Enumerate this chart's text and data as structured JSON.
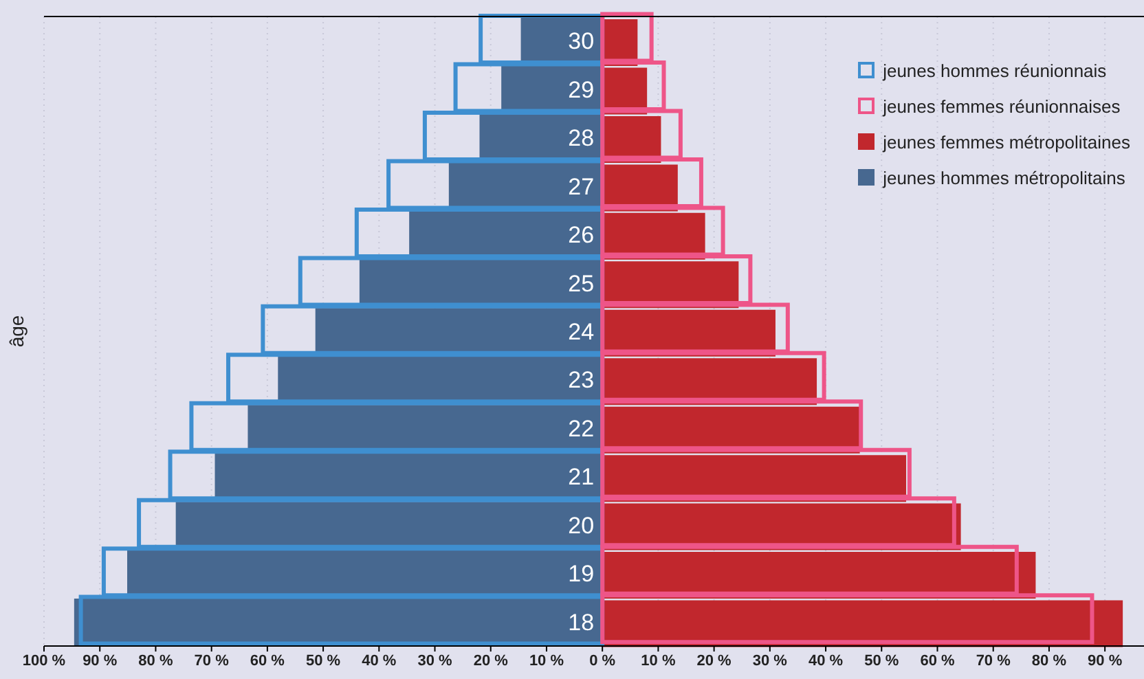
{
  "chart_data": {
    "type": "bar",
    "orientation": "horizontal",
    "ylabel": "âge",
    "categories": [
      "30",
      "29",
      "28",
      "27",
      "26",
      "25",
      "24",
      "23",
      "22",
      "21",
      "20",
      "19",
      "18"
    ],
    "series": [
      {
        "name": "jeunes hommes réunionnais",
        "color": "#3f8fd0",
        "values": [
          -21.8,
          -26.3,
          -31.8,
          -38.3,
          -44,
          -54.1,
          -60.8,
          -67,
          -73.6,
          -77.4,
          -83,
          -89.3,
          -93.4
        ]
      },
      {
        "name": "jeunes femmes réunionnaises",
        "color": "#ee5588",
        "values": [
          8.8,
          11,
          14,
          17.7,
          21.6,
          26.5,
          33.2,
          39.7,
          46.3,
          55,
          63,
          74.2,
          87.7
        ]
      },
      {
        "name": "jeunes femmes métropolitaines",
        "color": "#c1272d",
        "values": [
          6.3,
          8,
          10.5,
          13.5,
          18.4,
          24.4,
          31,
          38.4,
          46.1,
          54.4,
          64.2,
          77.6,
          93.2
        ]
      },
      {
        "name": "jeunes hommes métropolitains",
        "color": "#476890",
        "values": [
          -14.6,
          -18.1,
          -22,
          -27.5,
          -34.6,
          -43.5,
          -51.4,
          -58.1,
          -63.5,
          -69.4,
          -76.4,
          -85.1,
          -94.6
        ]
      }
    ],
    "xlim": [
      -100,
      97
    ],
    "xticks": [
      {
        "value": -100,
        "label": "100 %"
      },
      {
        "value": -90,
        "label": "90 %"
      },
      {
        "value": -80,
        "label": "80 %"
      },
      {
        "value": -70,
        "label": "70 %"
      },
      {
        "value": -60,
        "label": "60 %"
      },
      {
        "value": -50,
        "label": "50 %"
      },
      {
        "value": -40,
        "label": "40 %"
      },
      {
        "value": -30,
        "label": "30 %"
      },
      {
        "value": -20,
        "label": "20 %"
      },
      {
        "value": -10,
        "label": "10 %"
      },
      {
        "value": 0,
        "label": "0 %"
      },
      {
        "value": 10,
        "label": "10 %"
      },
      {
        "value": 20,
        "label": "20 %"
      },
      {
        "value": 30,
        "label": "30 %"
      },
      {
        "value": 40,
        "label": "40 %"
      },
      {
        "value": 50,
        "label": "50 %"
      },
      {
        "value": 60,
        "label": "60 %"
      },
      {
        "value": 70,
        "label": "70 %"
      },
      {
        "value": 80,
        "label": "80 %"
      },
      {
        "value": 90,
        "label": "90 %"
      }
    ],
    "grid": "x",
    "legend": "top right"
  }
}
